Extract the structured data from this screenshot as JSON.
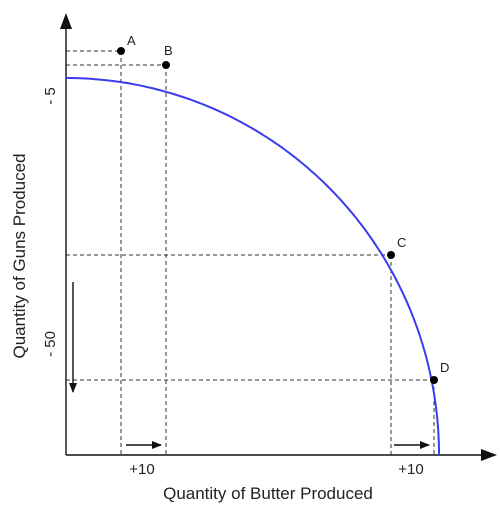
{
  "chart_data": {
    "type": "line",
    "title": "",
    "xlabel": "Quantity of Butter Produced",
    "ylabel": "Quantity of Guns Produced",
    "colors": {
      "curve": "#3b3bf0",
      "axis": "#111111",
      "guide": "#333333"
    },
    "grid": false,
    "series": [
      {
        "name": "",
        "points": [
          {
            "label": "A",
            "x": 55,
            "y": 404
          },
          {
            "label": "B",
            "x": 100,
            "y": 390
          },
          {
            "label": "C",
            "x": 325,
            "y": 200
          },
          {
            "label": "D",
            "x": 368,
            "y": 75
          }
        ]
      }
    ],
    "annotations": {
      "y_small": "- 5",
      "y_large": "- 50",
      "x_left": "+10",
      "x_right": "+10"
    }
  }
}
